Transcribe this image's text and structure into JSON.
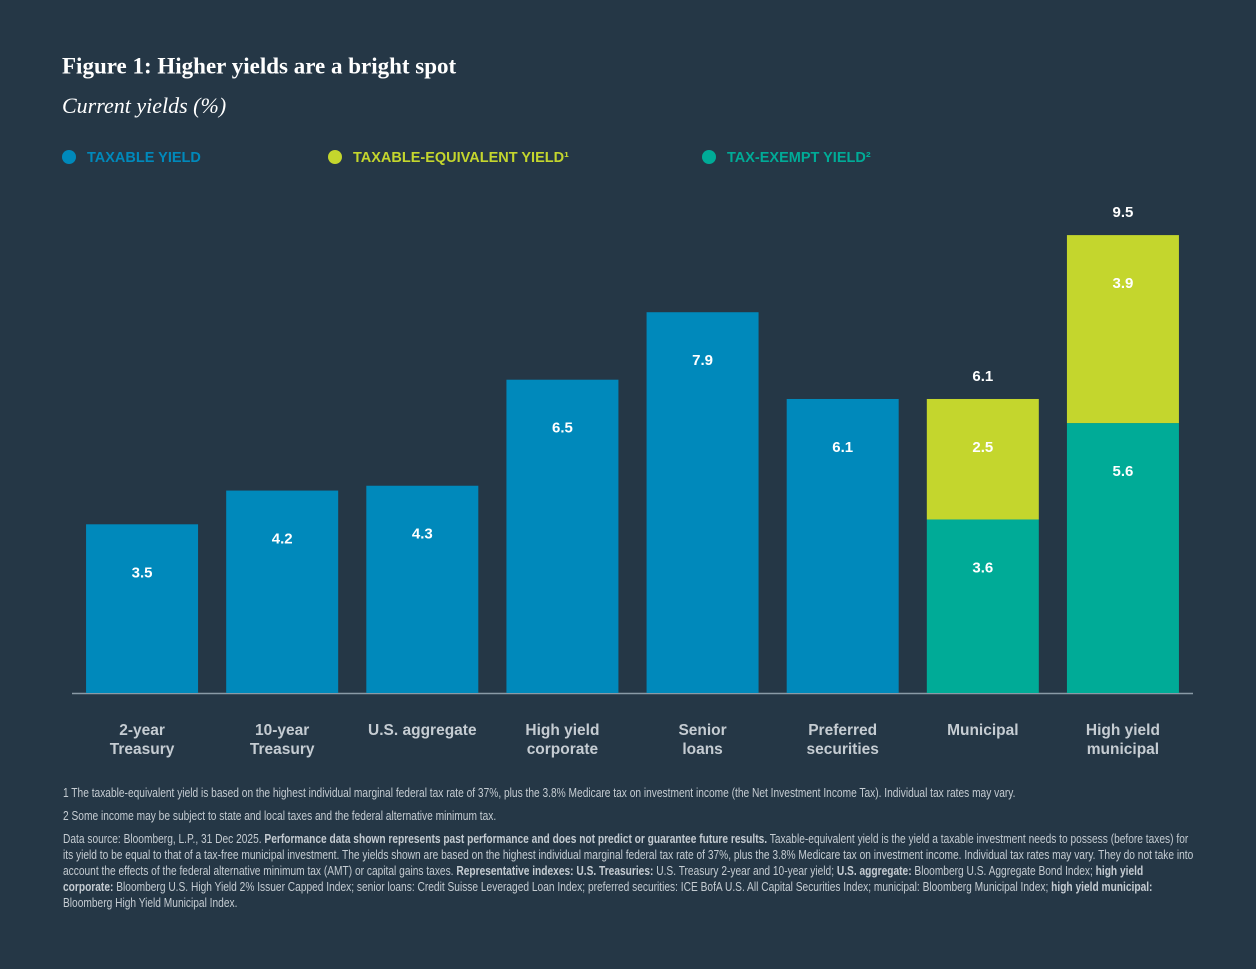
{
  "chart_data": {
    "type": "stacked_bar",
    "title": "Figure 1: Higher yields are a bright spot",
    "subtitle": "Current yields (%)",
    "categories": [
      "2-year\nTreasury",
      "10-year\nTreasury",
      "U.S. aggregate",
      "High yield\ncorporate",
      "Senior\nloans",
      "Preferred\nsecurities",
      "Municipal",
      "High yield\nmunicipal"
    ],
    "series": [
      {
        "name": "TAXABLE YIELD",
        "color": "#0089bb",
        "values": [
          3.5,
          4.2,
          4.3,
          6.5,
          7.9,
          6.1,
          null,
          null
        ]
      },
      {
        "name": "TAXABLE-EQUIVALENT YIELD¹",
        "color": "#c4d62d",
        "values": [
          null,
          null,
          null,
          null,
          null,
          null,
          2.5,
          3.9
        ]
      },
      {
        "name": "TAX-EXEMPT YIELD²",
        "color": "#00ab97",
        "values": [
          null,
          null,
          null,
          null,
          null,
          null,
          3.6,
          5.6
        ]
      }
    ],
    "totals": [
      null,
      null,
      null,
      null,
      null,
      null,
      6.1,
      9.5
    ],
    "ylim": [
      0,
      10
    ]
  },
  "footnotes": [
    "1 The taxable-equivalent yield is based on the highest individual marginal federal tax rate of 37%, plus the 3.8% Medicare tax on investment income (the Net Investment Income Tax). Individual tax rates may vary.",
    "2 Some income may be subject to state and local taxes and the federal alternative minimum tax."
  ],
  "source": [
    {
      "text": "Data source: Bloomberg, L.P., 31 Dec 2025. ",
      "bold": false
    },
    {
      "text": "Performance data shown represents past performance and does not predict or guarantee future results.",
      "bold": true
    },
    {
      "text": " Taxable-equivalent yield is the yield a taxable investment needs to possess (before taxes) for its yield to be equal to that of a tax-free municipal investment. The yields shown are based on the highest individual marginal federal tax rate of 37%, plus the 3.8% Medicare tax on investment income. Individual tax rates may vary. They do not take into account the effects of the federal alternative minimum tax (AMT) or capital gains taxes. ",
      "bold": false
    },
    {
      "text": "Representative indexes: U.S. Treasuries:",
      "bold": true
    },
    {
      "text": " U.S. Treasury 2-year and 10-year yield; ",
      "bold": false
    },
    {
      "text": "U.S. aggregate:",
      "bold": true
    },
    {
      "text": " Bloomberg U.S. Aggregate Bond Index; ",
      "bold": false
    },
    {
      "text": "high yield corporate:",
      "bold": true
    },
    {
      "text": " Bloomberg U.S. High Yield 2% Issuer Capped Index; senior loans: Credit Suisse Leveraged Loan Index; preferred securities: ICE BofA U.S. All Capital Securities Index; municipal: Bloomberg Municipal Index; ",
      "bold": false
    },
    {
      "text": "high yield municipal:",
      "bold": true
    },
    {
      "text": " Bloomberg High Yield Municipal Index.",
      "bold": false
    }
  ]
}
